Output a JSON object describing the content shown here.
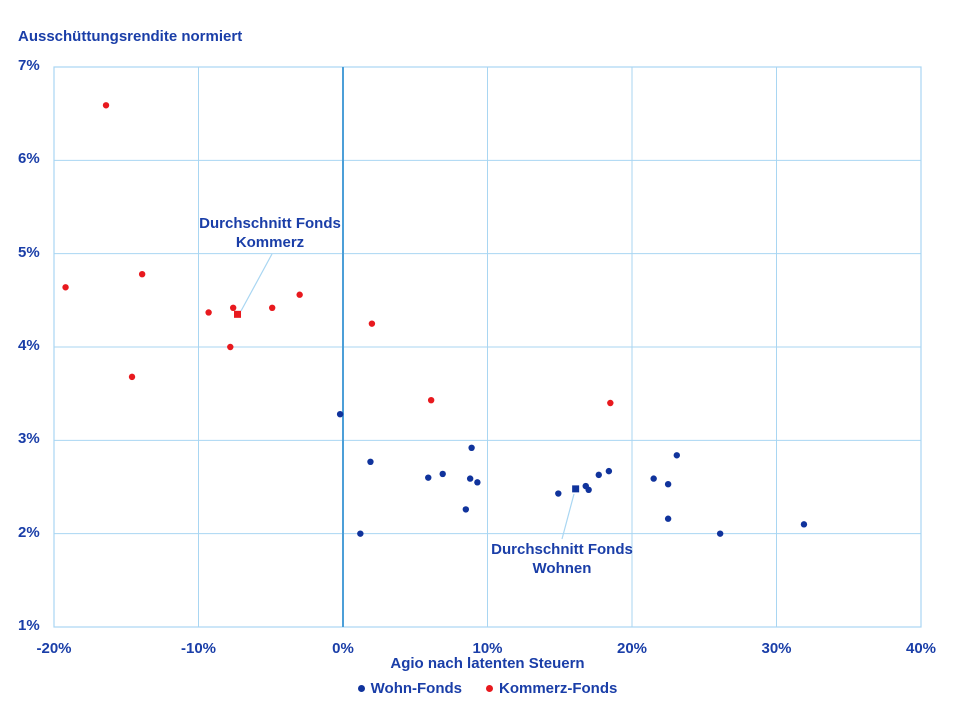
{
  "chart": {
    "title": "Ausschüttungsrendite normiert"
  },
  "colors": {
    "text_blue": "#1A3EA8",
    "wohn_blue": "#10339C",
    "kommerz_red": "#E8191E",
    "grid_light_blue": "#A9D6F2",
    "zero_axis_blue": "#4C9FD8"
  },
  "chart_data": {
    "type": "scatter",
    "title": "Ausschüttungsrendite normiert",
    "xlabel": "Agio nach latenten Steuern",
    "ylabel": "Ausschüttungsrendite normiert",
    "xlim": [
      -20,
      40
    ],
    "ylim": [
      1,
      7
    ],
    "x_ticks": {
      "values": [
        -20,
        -10,
        0,
        10,
        20,
        30,
        40
      ],
      "labels": [
        "-20%",
        "-10%",
        "0%",
        "10%",
        "20%",
        "30%",
        "40%"
      ]
    },
    "y_ticks": {
      "values": [
        7,
        6,
        5,
        4,
        3,
        2,
        1
      ],
      "labels": [
        "7%",
        "6%",
        "5%",
        "4%",
        "3%",
        "2%",
        "1%"
      ]
    },
    "grid": true,
    "legend_position": "bottom",
    "series": [
      {
        "name": "Wohn-Fonds",
        "marker": "circle",
        "color": "#10339C",
        "points": [
          [
            -0.2,
            3.28
          ],
          [
            1.2,
            2.0
          ],
          [
            1.9,
            2.77
          ],
          [
            5.9,
            2.6
          ],
          [
            6.9,
            2.64
          ],
          [
            8.5,
            2.26
          ],
          [
            8.8,
            2.59
          ],
          [
            8.9,
            2.92
          ],
          [
            9.3,
            2.55
          ],
          [
            14.9,
            2.43
          ],
          [
            16.8,
            2.51
          ],
          [
            17.0,
            2.47
          ],
          [
            17.7,
            2.63
          ],
          [
            18.4,
            2.67
          ],
          [
            21.5,
            2.59
          ],
          [
            22.5,
            2.53
          ],
          [
            22.5,
            2.16
          ],
          [
            23.1,
            2.84
          ],
          [
            26.1,
            2.0
          ],
          [
            31.9,
            2.1
          ]
        ]
      },
      {
        "name": "Kommerz-Fonds",
        "marker": "circle",
        "color": "#E8191E",
        "points": [
          [
            -19.2,
            4.64
          ],
          [
            -16.4,
            6.59
          ],
          [
            -14.6,
            3.68
          ],
          [
            -13.9,
            4.78
          ],
          [
            -9.3,
            4.37
          ],
          [
            -7.8,
            4.0
          ],
          [
            -7.6,
            4.42
          ],
          [
            -4.9,
            4.42
          ],
          [
            -3.0,
            4.56
          ],
          [
            2.0,
            4.25
          ],
          [
            6.1,
            3.43
          ],
          [
            18.5,
            3.4
          ]
        ]
      }
    ],
    "averages": [
      {
        "name": "Durchschnitt Fonds Kommerz",
        "label": "Durchschnitt Fonds\nKommerz",
        "marker": "square",
        "color": "#E8191E",
        "point": [
          -7.3,
          4.35
        ]
      },
      {
        "name": "Durchschnitt Fonds Wohnen",
        "label": "Durchschnitt Fonds\nWohnen",
        "marker": "square",
        "color": "#10339C",
        "point": [
          16.1,
          2.48
        ]
      }
    ]
  }
}
